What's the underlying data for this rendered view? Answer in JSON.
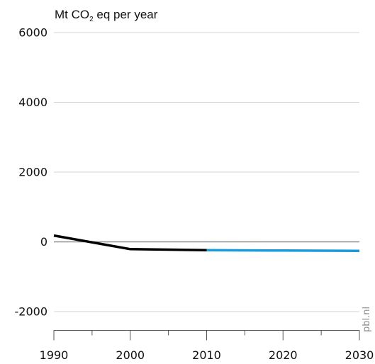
{
  "chart_data": {
    "type": "line",
    "ylabel": {
      "main": "Mt CO",
      "subscript": "2",
      "rest": " eq per year"
    },
    "x_ticks": [
      "1990",
      "2000",
      "2010",
      "2020",
      "2030"
    ],
    "y_ticks": [
      "6000",
      "4000",
      "2000",
      "0",
      "-2000"
    ],
    "xlim": [
      1990,
      2030
    ],
    "ylim": [
      -2500,
      6000
    ],
    "zero_line": true,
    "grid": "horizontal",
    "series": [
      {
        "color": "#000000",
        "x": [
          1990,
          2000,
          2010
        ],
        "y": [
          180,
          -210,
          -240
        ]
      },
      {
        "color": "#1a9ad8",
        "x": [
          2010,
          2020,
          2030
        ],
        "y": [
          -240,
          -250,
          -260
        ]
      }
    ]
  },
  "watermark": "pbl.nl"
}
